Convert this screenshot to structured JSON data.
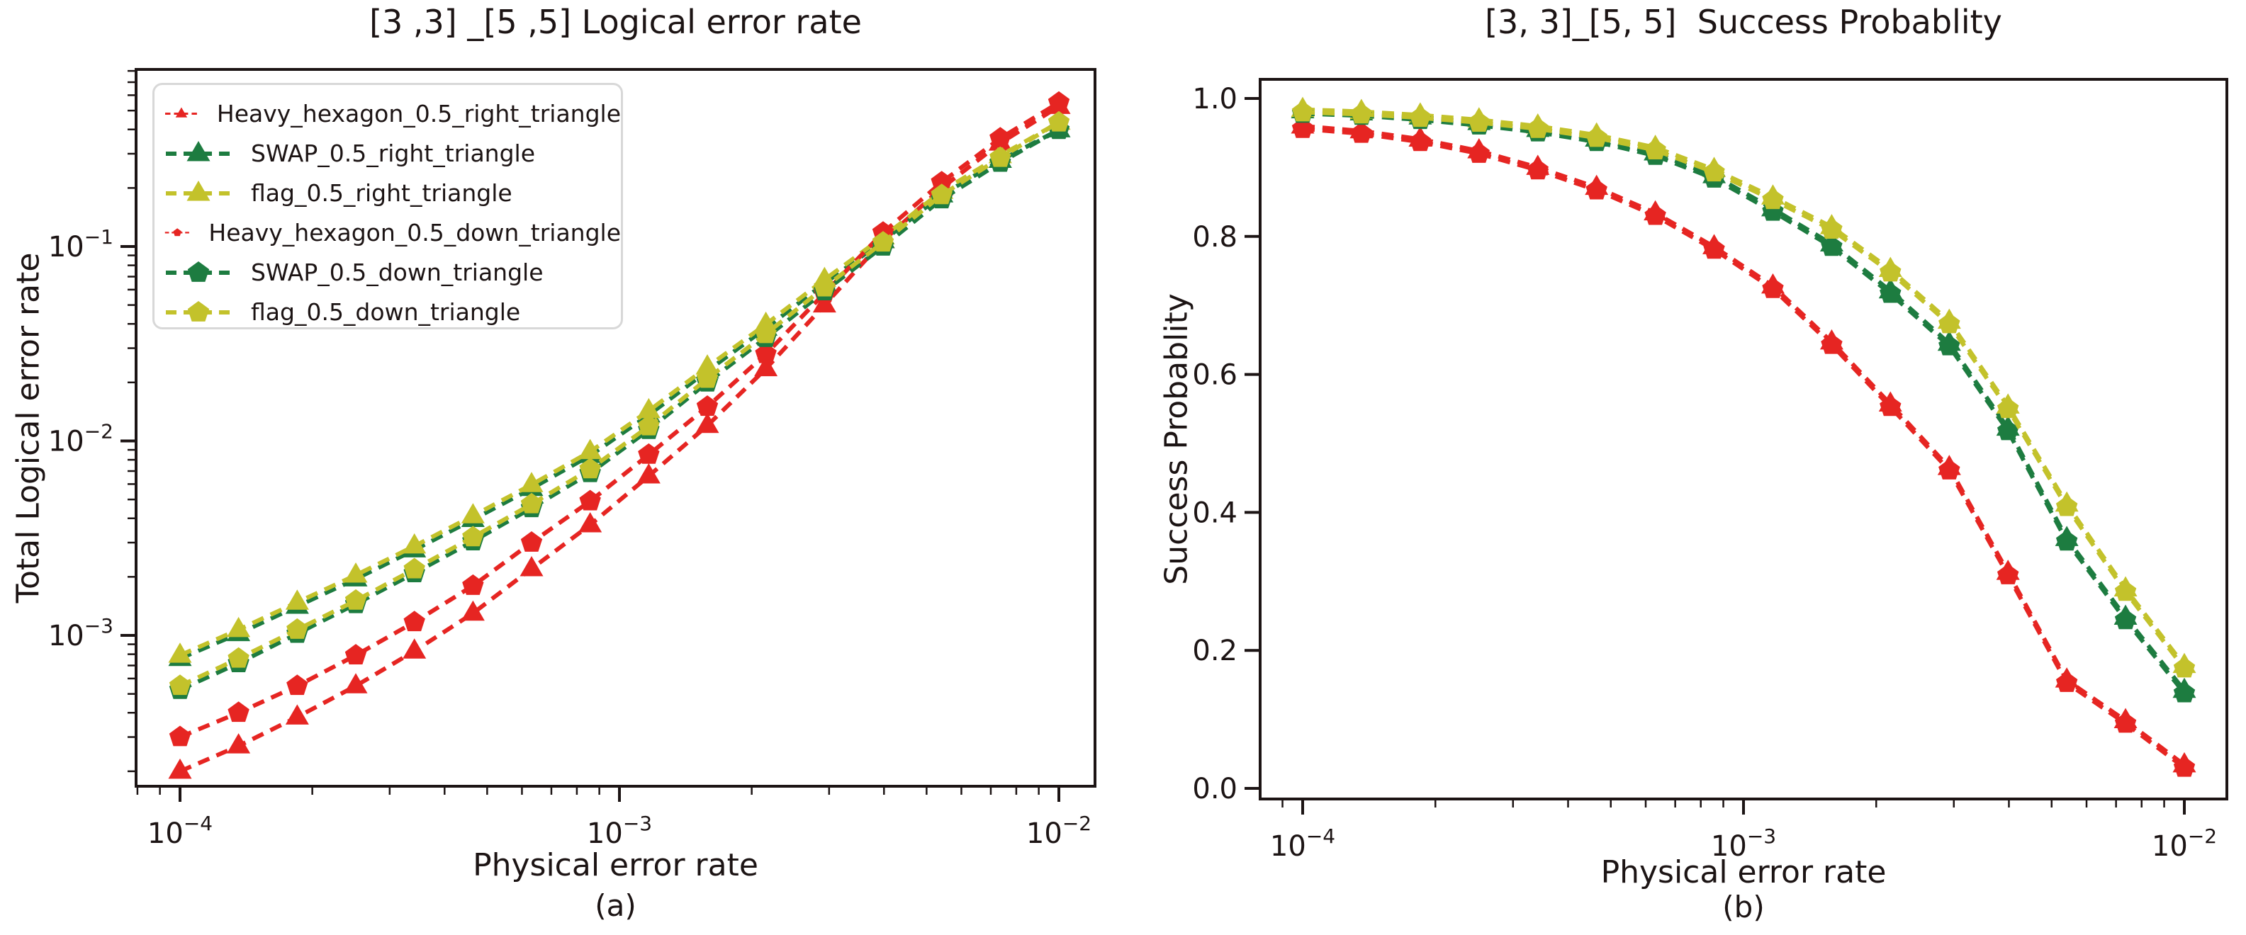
{
  "figure": {
    "background": "#ffffff",
    "text_color": "#1c1414",
    "legend_border_color": "#d8d8d8"
  },
  "palette": {
    "heavy_hexagon": "#e62522",
    "swap": "#1d7c40",
    "flag": "#c3c22b"
  },
  "chart_data": [
    {
      "type": "line",
      "title": "[3 ,3] _[5 ,5] Logical error rate",
      "xlabel": "Physical error rate",
      "ylabel": "Total Logical error rate",
      "sublabel": "(a)",
      "xscale": "log",
      "yscale": "log",
      "xlim": [
        7.9e-05,
        0.0121
      ],
      "ylim": [
        0.000167,
        0.81
      ],
      "grid": false,
      "legend_position": "upper left",
      "x_ticks": [
        {
          "v": 0.0001,
          "label": "10^-4"
        },
        {
          "v": 0.001,
          "label": "10^-3"
        },
        {
          "v": 0.01,
          "label": "10^-2"
        }
      ],
      "y_ticks": [
        {
          "v": 0.1,
          "label": "10^-1"
        },
        {
          "v": 0.01,
          "label": "10^-2"
        },
        {
          "v": 0.001,
          "label": "10^-3"
        }
      ],
      "x": [
        0.0001,
        0.0001359,
        0.0001848,
        0.0002512,
        0.0003415,
        0.0004642,
        0.000631,
        0.0008577,
        0.001166,
        0.001585,
        0.002154,
        0.002929,
        0.003981,
        0.005412,
        0.007356,
        0.01
      ],
      "series": [
        {
          "name": "Heavy_hexagon_0.5_right_triangle",
          "color": "#e62522",
          "marker": "triangle_up",
          "linestyle": "dashed",
          "values": [
            0.0002,
            0.00027,
            0.00038,
            0.00055,
            0.00083,
            0.0013,
            0.0022,
            0.0037,
            0.0066,
            0.012,
            0.0235,
            0.05,
            0.107,
            0.2,
            0.34,
            0.525
          ]
        },
        {
          "name": "SWAP_0.5_right_triangle",
          "color": "#1d7c40",
          "marker": "triangle_up",
          "linestyle": "dashed",
          "values": [
            0.00076,
            0.00102,
            0.00141,
            0.00195,
            0.00275,
            0.00394,
            0.00569,
            0.00841,
            0.0136,
            0.0229,
            0.038,
            0.0646,
            0.107,
            0.184,
            0.277,
            0.398
          ]
        },
        {
          "name": "flag_0.5_right_triangle",
          "color": "#c3c22b",
          "marker": "triangle_up",
          "linestyle": "dashed",
          "values": [
            0.00079,
            0.00107,
            0.00148,
            0.00204,
            0.00288,
            0.00412,
            0.00596,
            0.00881,
            0.0143,
            0.024,
            0.0398,
            0.0676,
            0.112,
            0.192,
            0.293,
            0.435
          ]
        },
        {
          "name": "Heavy_hexagon_0.5_down_triangle",
          "color": "#e62522",
          "marker": "pentagon",
          "linestyle": "dashed",
          "values": [
            0.0003,
            0.0004,
            0.00055,
            0.00079,
            0.00117,
            0.0018,
            0.003,
            0.0049,
            0.0085,
            0.015,
            0.028,
            0.0575,
            0.118,
            0.214,
            0.36,
            0.55
          ]
        },
        {
          "name": "SWAP_0.5_down_triangle",
          "color": "#1d7c40",
          "marker": "pentagon",
          "linestyle": "dashed",
          "values": [
            0.000525,
            0.00072,
            0.00102,
            0.00145,
            0.00209,
            0.00305,
            0.00452,
            0.00684,
            0.0114,
            0.02,
            0.0339,
            0.0589,
            0.1,
            0.175,
            0.27,
            0.398
          ]
        },
        {
          "name": "flag_0.5_down_triangle",
          "color": "#c3c22b",
          "marker": "pentagon",
          "linestyle": "dashed",
          "values": [
            0.00055,
            0.00076,
            0.00107,
            0.00151,
            0.00219,
            0.0032,
            0.00473,
            0.00716,
            0.0119,
            0.0209,
            0.0355,
            0.0617,
            0.105,
            0.184,
            0.286,
            0.435
          ]
        }
      ]
    },
    {
      "type": "line",
      "title": "[3, 3]_[5, 5]  Success Probablity",
      "xlabel": "Physical error rate",
      "ylabel": "Success Probablity",
      "sublabel": "(b)",
      "xscale": "log",
      "yscale": "linear",
      "xlim": [
        7.9e-05,
        0.0125
      ],
      "ylim": [
        -0.015,
        1.028
      ],
      "grid": false,
      "legend_position": "none",
      "x_ticks": [
        {
          "v": 0.0001,
          "label": "10^-4"
        },
        {
          "v": 0.001,
          "label": "10^-3"
        },
        {
          "v": 0.01,
          "label": "10^-2"
        }
      ],
      "y_ticks": [
        {
          "v": 1.0,
          "label": "1.0"
        },
        {
          "v": 0.8,
          "label": "0.8"
        },
        {
          "v": 0.6,
          "label": "0.6"
        },
        {
          "v": 0.4,
          "label": "0.4"
        },
        {
          "v": 0.2,
          "label": "0.2"
        },
        {
          "v": 0.0,
          "label": "0.0"
        }
      ],
      "x": [
        0.0001,
        0.0001359,
        0.0001848,
        0.0002512,
        0.0003415,
        0.0004642,
        0.000631,
        0.0008577,
        0.001166,
        0.001585,
        0.002154,
        0.002929,
        0.003981,
        0.005412,
        0.007356,
        0.01
      ],
      "series": [
        {
          "name": "Heavy_hexagon_0.5_right_triangle",
          "color": "#e62522",
          "marker": "triangle_up",
          "linestyle": "dashed",
          "values": [
            0.96,
            0.953,
            0.941,
            0.924,
            0.9,
            0.871,
            0.834,
            0.785,
            0.728,
            0.647,
            0.557,
            0.465,
            0.313,
            0.157,
            0.098,
            0.034
          ]
        },
        {
          "name": "SWAP_0.5_right_triangle",
          "color": "#1d7c40",
          "marker": "triangle_up",
          "linestyle": "dashed",
          "values": [
            0.982,
            0.979,
            0.973,
            0.965,
            0.955,
            0.941,
            0.921,
            0.888,
            0.84,
            0.789,
            0.721,
            0.645,
            0.522,
            0.362,
            0.248,
            0.142
          ]
        },
        {
          "name": "flag_0.5_right_triangle",
          "color": "#c3c22b",
          "marker": "triangle_up",
          "linestyle": "dashed",
          "values": [
            0.984,
            0.981,
            0.976,
            0.969,
            0.96,
            0.947,
            0.929,
            0.897,
            0.857,
            0.814,
            0.752,
            0.677,
            0.554,
            0.412,
            0.289,
            0.178
          ]
        },
        {
          "name": "Heavy_hexagon_0.5_down_triangle",
          "color": "#e62522",
          "marker": "pentagon",
          "linestyle": "dashed",
          "values": [
            0.956,
            0.949,
            0.937,
            0.92,
            0.896,
            0.867,
            0.83,
            0.781,
            0.724,
            0.643,
            0.553,
            0.461,
            0.309,
            0.153,
            0.094,
            0.03
          ]
        },
        {
          "name": "SWAP_0.5_down_triangle",
          "color": "#1d7c40",
          "marker": "pentagon",
          "linestyle": "dashed",
          "values": [
            0.978,
            0.975,
            0.969,
            0.961,
            0.951,
            0.937,
            0.917,
            0.884,
            0.836,
            0.785,
            0.717,
            0.641,
            0.518,
            0.358,
            0.244,
            0.138
          ]
        },
        {
          "name": "flag_0.5_down_triangle",
          "color": "#c3c22b",
          "marker": "pentagon",
          "linestyle": "dashed",
          "values": [
            0.98,
            0.977,
            0.972,
            0.965,
            0.956,
            0.943,
            0.925,
            0.893,
            0.853,
            0.81,
            0.748,
            0.673,
            0.55,
            0.408,
            0.285,
            0.174
          ]
        }
      ]
    }
  ]
}
